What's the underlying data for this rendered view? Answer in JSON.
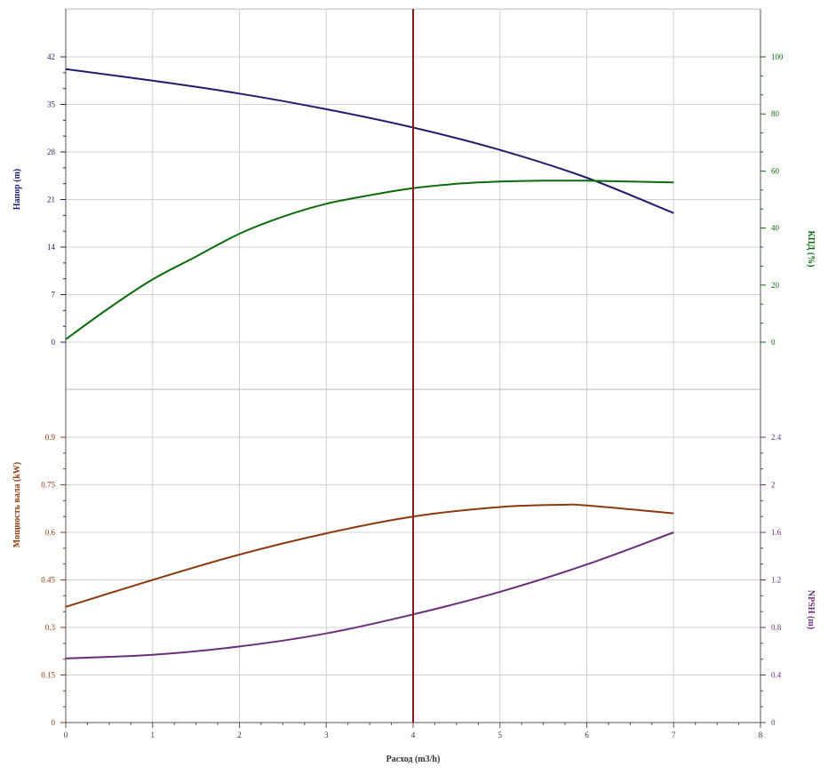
{
  "chart_data": {
    "type": "line",
    "xlabel": "Расход (m3/h)",
    "x_ticks": [
      "0",
      "1",
      "2",
      "3",
      "4",
      "5",
      "6",
      "7",
      "8"
    ],
    "xlim": [
      0,
      8
    ],
    "grid": true,
    "operating_point_x": 4,
    "colors": {
      "head": "#1f1f6e",
      "efficiency": "#0b6b0b",
      "power": "#8b3a0f",
      "npsh": "#6b2f7a",
      "operating_line": "#8b1a1a",
      "grid": "#d0d0d0"
    },
    "top_panel": {
      "left_axis": {
        "label": "Напор (m)",
        "range": [
          0,
          42
        ],
        "ticks": [
          "0",
          "7",
          "14",
          "21",
          "28",
          "35",
          "42"
        ]
      },
      "right_axis": {
        "label": "КПД (%)",
        "range": [
          0,
          100
        ],
        "ticks": [
          "0",
          "20",
          "40",
          "60",
          "80",
          "100"
        ]
      },
      "series": [
        {
          "id": "head",
          "axis": "left",
          "x": [
            0,
            1,
            2,
            3,
            4,
            5,
            6,
            7
          ],
          "y": [
            40.2,
            38.5,
            36.6,
            34.3,
            31.6,
            28.3,
            24.2,
            19.0
          ]
        },
        {
          "id": "efficiency",
          "axis": "right",
          "x": [
            0,
            0.5,
            1,
            1.5,
            2,
            2.5,
            3,
            3.5,
            4,
            4.5,
            5,
            5.5,
            6,
            6.5,
            7
          ],
          "y": [
            1,
            12,
            22,
            30,
            38,
            44,
            48.5,
            51.5,
            54,
            55.5,
            56.3,
            56.6,
            56.6,
            56.3,
            56
          ]
        }
      ]
    },
    "bottom_panel": {
      "left_axis": {
        "label": "Мощность вала (kW)",
        "range": [
          0,
          0.9
        ],
        "ticks": [
          "0",
          "0.15",
          "0.3",
          "0.45",
          "0.6",
          "0.75",
          "0.9"
        ]
      },
      "right_axis": {
        "label": "NPSH (m)",
        "range": [
          0,
          2.4
        ],
        "ticks": [
          "0",
          "0.4",
          "0.8",
          "1.2",
          "1.6",
          "2",
          "2.4"
        ]
      },
      "series": [
        {
          "id": "power",
          "axis": "left",
          "x": [
            0,
            1,
            2,
            3,
            4,
            5,
            5.7,
            6,
            7
          ],
          "y": [
            0.365,
            0.45,
            0.53,
            0.597,
            0.65,
            0.68,
            0.687,
            0.685,
            0.66
          ]
        },
        {
          "id": "npsh",
          "axis": "right",
          "x": [
            0,
            1,
            2,
            3,
            4,
            5,
            6,
            7
          ],
          "y": [
            0.54,
            0.57,
            0.64,
            0.75,
            0.91,
            1.1,
            1.33,
            1.6
          ]
        }
      ]
    }
  }
}
